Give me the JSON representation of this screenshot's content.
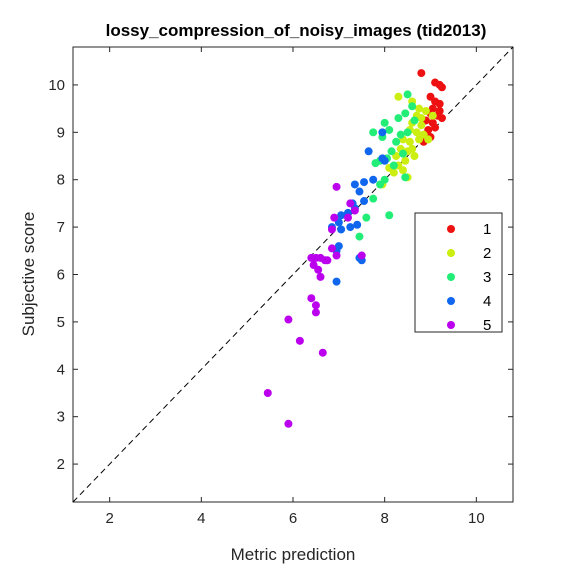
{
  "chart_data": {
    "type": "scatter",
    "title": "lossy_compression_of_noisy_images (tid2013)",
    "xlabel": "Metric prediction",
    "ylabel": "Subjective score",
    "xlim": [
      1.2,
      10.8
    ],
    "ylim": [
      1.2,
      10.8
    ],
    "xticks": [
      2,
      4,
      6,
      8,
      10
    ],
    "yticks": [
      2,
      3,
      4,
      5,
      6,
      7,
      8,
      9,
      10
    ],
    "grid": false,
    "diagonal": true,
    "legend_position": "right",
    "series": [
      {
        "name": "1",
        "color": "#ee1111",
        "points": [
          [
            8.8,
            10.25
          ],
          [
            9.1,
            10.05
          ],
          [
            9.2,
            10.0
          ],
          [
            9.25,
            9.95
          ],
          [
            9.0,
            9.75
          ],
          [
            9.1,
            9.65
          ],
          [
            9.05,
            9.5
          ],
          [
            9.2,
            9.45
          ],
          [
            9.15,
            9.35
          ],
          [
            9.25,
            9.3
          ],
          [
            9.05,
            9.2
          ],
          [
            8.95,
            9.05
          ],
          [
            9.1,
            9.1
          ],
          [
            9.0,
            8.9
          ],
          [
            8.85,
            8.8
          ],
          [
            9.2,
            9.6
          ],
          [
            9.0,
            9.4
          ],
          [
            8.9,
            9.25
          ]
        ]
      },
      {
        "name": "2",
        "color": "#ccee11",
        "points": [
          [
            8.3,
            9.75
          ],
          [
            8.6,
            9.65
          ],
          [
            8.75,
            9.5
          ],
          [
            8.7,
            9.35
          ],
          [
            8.9,
            9.45
          ],
          [
            8.6,
            9.2
          ],
          [
            8.8,
            9.15
          ],
          [
            8.55,
            9.05
          ],
          [
            8.7,
            9.0
          ],
          [
            8.85,
            8.95
          ],
          [
            8.4,
            8.85
          ],
          [
            8.55,
            8.8
          ],
          [
            8.75,
            8.85
          ],
          [
            8.95,
            8.85
          ],
          [
            8.35,
            8.65
          ],
          [
            8.5,
            8.6
          ],
          [
            8.65,
            8.5
          ],
          [
            8.25,
            8.5
          ],
          [
            8.45,
            8.4
          ],
          [
            8.3,
            8.3
          ],
          [
            8.6,
            8.65
          ],
          [
            8.4,
            8.2
          ],
          [
            8.5,
            8.05
          ],
          [
            8.1,
            8.25
          ],
          [
            8.2,
            8.15
          ],
          [
            7.95,
            7.9
          ],
          [
            8.8,
            9.3
          ],
          [
            9.05,
            9.35
          ]
        ]
      },
      {
        "name": "3",
        "color": "#22ee77",
        "points": [
          [
            8.5,
            9.8
          ],
          [
            8.6,
            9.55
          ],
          [
            8.45,
            9.4
          ],
          [
            8.3,
            9.3
          ],
          [
            8.0,
            9.2
          ],
          [
            8.1,
            9.05
          ],
          [
            7.75,
            9.0
          ],
          [
            7.95,
            8.9
          ],
          [
            8.35,
            8.95
          ],
          [
            8.5,
            9.0
          ],
          [
            8.25,
            8.8
          ],
          [
            8.15,
            8.6
          ],
          [
            8.4,
            8.55
          ],
          [
            8.05,
            8.45
          ],
          [
            7.9,
            8.4
          ],
          [
            7.8,
            8.35
          ],
          [
            8.2,
            8.3
          ],
          [
            8.0,
            8.0
          ],
          [
            8.45,
            8.05
          ],
          [
            7.9,
            7.9
          ],
          [
            7.75,
            7.6
          ],
          [
            7.6,
            7.2
          ],
          [
            8.1,
            7.25
          ],
          [
            7.45,
            6.8
          ],
          [
            8.65,
            9.25
          ]
        ]
      },
      {
        "name": "4",
        "color": "#1166ee",
        "points": [
          [
            7.95,
            9.0
          ],
          [
            7.65,
            8.6
          ],
          [
            7.95,
            8.45
          ],
          [
            8.0,
            8.4
          ],
          [
            7.75,
            8.0
          ],
          [
            7.55,
            7.95
          ],
          [
            7.35,
            7.9
          ],
          [
            7.45,
            7.75
          ],
          [
            7.55,
            7.55
          ],
          [
            7.3,
            7.5
          ],
          [
            7.35,
            7.4
          ],
          [
            7.2,
            7.3
          ],
          [
            7.05,
            7.25
          ],
          [
            7.0,
            7.1
          ],
          [
            6.85,
            7.0
          ],
          [
            7.25,
            7.0
          ],
          [
            7.4,
            7.05
          ],
          [
            7.05,
            6.95
          ],
          [
            7.0,
            6.6
          ],
          [
            6.95,
            6.5
          ],
          [
            7.45,
            6.35
          ],
          [
            7.5,
            6.3
          ],
          [
            6.95,
            5.85
          ]
        ]
      },
      {
        "name": "5",
        "color": "#bb00ee",
        "points": [
          [
            6.95,
            7.85
          ],
          [
            7.25,
            7.5
          ],
          [
            7.35,
            7.35
          ],
          [
            6.9,
            7.2
          ],
          [
            7.2,
            7.2
          ],
          [
            6.85,
            6.95
          ],
          [
            6.85,
            6.55
          ],
          [
            6.95,
            6.4
          ],
          [
            7.5,
            6.4
          ],
          [
            6.4,
            6.35
          ],
          [
            6.5,
            6.35
          ],
          [
            6.6,
            6.35
          ],
          [
            6.7,
            6.3
          ],
          [
            6.75,
            6.3
          ],
          [
            6.45,
            6.2
          ],
          [
            6.55,
            6.1
          ],
          [
            6.6,
            5.95
          ],
          [
            6.4,
            5.5
          ],
          [
            6.5,
            5.35
          ],
          [
            6.5,
            5.2
          ],
          [
            5.9,
            5.05
          ],
          [
            6.15,
            4.6
          ],
          [
            6.65,
            4.35
          ],
          [
            5.45,
            3.5
          ],
          [
            5.9,
            2.85
          ]
        ]
      }
    ]
  }
}
